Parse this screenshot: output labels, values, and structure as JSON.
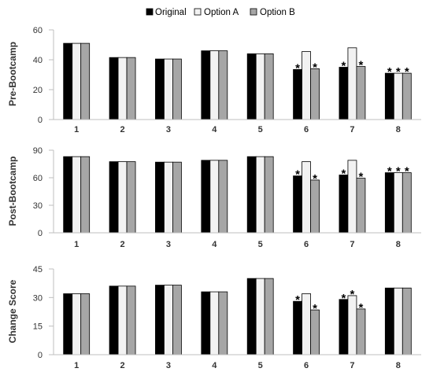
{
  "legend": {
    "position": "top-center",
    "items": [
      {
        "label": "Original",
        "color": "#000000"
      },
      {
        "label": "Option A",
        "color": "#f2f2f2"
      },
      {
        "label": "Option B",
        "color": "#a6a6a6"
      }
    ]
  },
  "significance_marker": "*",
  "chart_data": [
    {
      "type": "bar",
      "ylabel": "Pre-Bootcamp",
      "ylim": [
        0,
        60
      ],
      "yticks": [
        0,
        20,
        40,
        60
      ],
      "categories": [
        "1",
        "2",
        "3",
        "4",
        "5",
        "6",
        "7",
        "8"
      ],
      "series": [
        {
          "name": "Original",
          "values": [
            51,
            41.5,
            40.5,
            46,
            44,
            33.5,
            35,
            31
          ]
        },
        {
          "name": "Option A",
          "values": [
            51,
            41.5,
            40.5,
            46,
            44,
            45.5,
            48,
            31
          ]
        },
        {
          "name": "Option B",
          "values": [
            51,
            41.5,
            40.5,
            46,
            44,
            34,
            35.5,
            31
          ]
        }
      ],
      "significance": [
        {
          "category": "6",
          "series": [
            "Original",
            "Option B"
          ]
        },
        {
          "category": "7",
          "series": [
            "Original",
            "Option B"
          ]
        },
        {
          "category": "8",
          "series": [
            "Original",
            "Option A",
            "Option B"
          ]
        }
      ],
      "grid": false
    },
    {
      "type": "bar",
      "ylabel": "Post-Bootcamp",
      "ylim": [
        0,
        90
      ],
      "yticks": [
        0,
        30,
        60,
        90
      ],
      "categories": [
        "1",
        "2",
        "3",
        "4",
        "5",
        "6",
        "7",
        "8"
      ],
      "series": [
        {
          "name": "Original",
          "values": [
            83,
            77.5,
            77,
            79,
            83,
            62,
            63,
            65.5
          ]
        },
        {
          "name": "Option A",
          "values": [
            83,
            77.5,
            77,
            79,
            83,
            77.5,
            79,
            65.5
          ]
        },
        {
          "name": "Option B",
          "values": [
            83,
            77.5,
            77,
            79,
            83,
            57.5,
            59.5,
            65.5
          ]
        }
      ],
      "significance": [
        {
          "category": "6",
          "series": [
            "Original",
            "Option B"
          ]
        },
        {
          "category": "7",
          "series": [
            "Original",
            "Option B"
          ]
        },
        {
          "category": "8",
          "series": [
            "Original",
            "Option A",
            "Option B"
          ]
        }
      ],
      "grid": false
    },
    {
      "type": "bar",
      "ylabel": "Change Score",
      "ylim": [
        0,
        45
      ],
      "yticks": [
        0,
        15,
        30,
        45
      ],
      "categories": [
        "1",
        "2",
        "3",
        "4",
        "5",
        "6",
        "7",
        "8"
      ],
      "series": [
        {
          "name": "Original",
          "values": [
            32,
            36,
            36.5,
            33,
            40,
            28,
            29,
            35
          ]
        },
        {
          "name": "Option A",
          "values": [
            32,
            36,
            36.5,
            33,
            40,
            32,
            31,
            35
          ]
        },
        {
          "name": "Option B",
          "values": [
            32,
            36,
            36.5,
            33,
            40,
            23.5,
            24,
            35
          ]
        }
      ],
      "significance": [
        {
          "category": "6",
          "series": [
            "Original",
            "Option B"
          ]
        },
        {
          "category": "7",
          "series": [
            "Original",
            "Option A",
            "Option B"
          ]
        }
      ],
      "grid": false
    }
  ]
}
